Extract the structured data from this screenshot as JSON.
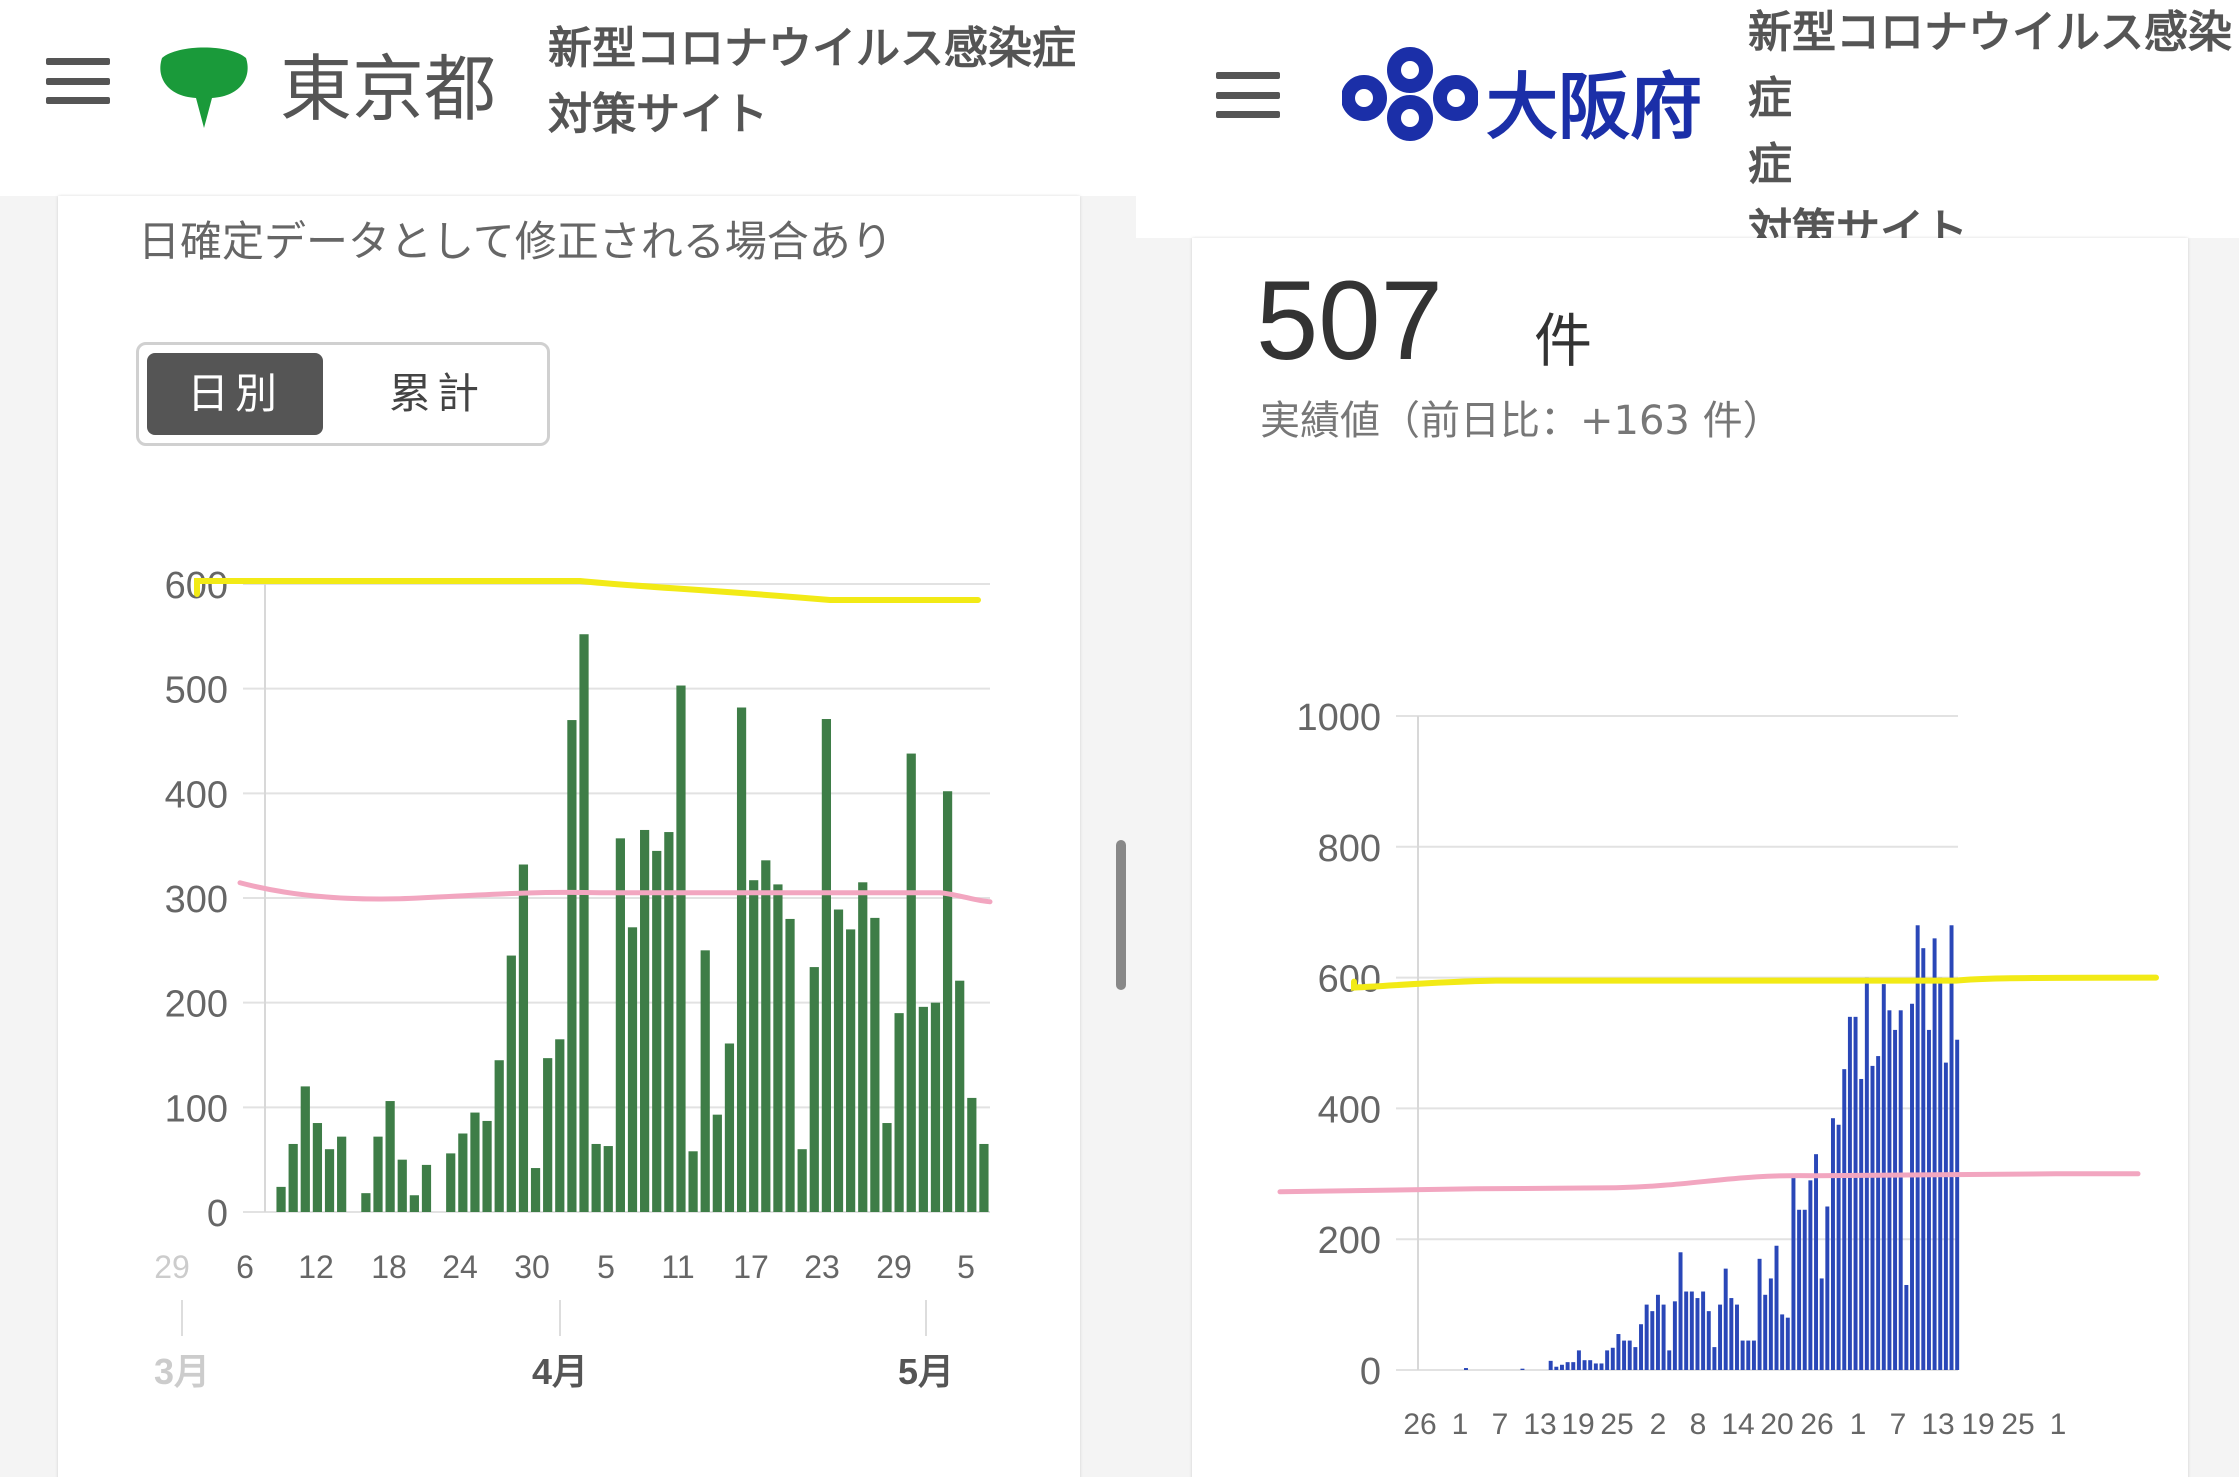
{
  "tokyo": {
    "logo_text": "東京都",
    "title": "新型コロナウイルス感染症\n対策サイト",
    "note": "日確定データとして修正される場合あり",
    "toggle": {
      "daily": "日別",
      "cumulative": "累計"
    },
    "colors": {
      "bar": "#3e7d47",
      "highlight_yellow": "#f2ea16",
      "highlight_pink": "#f2a6c0",
      "logo_green": "#1a9a3a"
    }
  },
  "osaka": {
    "logo_text": "大阪府",
    "title": "新型コロナウイルス感染症\n症\n対策サイト",
    "count_value": "507",
    "count_unit": "件",
    "count_sub": "実績値（前日比：+163 件）",
    "colors": {
      "bar": "#2a47b8",
      "logo_blue": "#1b2fa8"
    }
  },
  "chart_data": [
    {
      "type": "bar",
      "name": "tokyo",
      "ylim": [
        0,
        600
      ],
      "yticks": [
        0,
        100,
        200,
        300,
        400,
        500,
        600
      ],
      "x_tick_labels": [
        "29",
        "6",
        "12",
        "18",
        "24",
        "30",
        "5",
        "11",
        "17",
        "23",
        "29",
        "5"
      ],
      "month_labels": [
        "3月",
        "4月",
        "5月"
      ],
      "values": [
        24,
        65,
        120,
        85,
        60,
        72,
        0,
        18,
        72,
        106,
        50,
        16,
        45,
        0,
        56,
        75,
        95,
        87,
        145,
        245,
        332,
        42,
        147,
        165,
        470,
        552,
        65,
        63,
        357,
        272,
        365,
        345,
        363,
        503,
        58,
        250,
        93,
        161,
        482,
        317,
        336,
        313,
        280,
        60,
        234,
        471,
        289,
        270,
        315,
        281,
        85,
        190,
        438,
        196,
        200,
        402,
        221,
        109,
        65
      ],
      "annotations": {
        "yellow_line_near": 600,
        "pink_line_near": 305
      }
    },
    {
      "type": "bar",
      "name": "osaka",
      "ylim": [
        0,
        1000
      ],
      "yticks": [
        0,
        200,
        400,
        600,
        800,
        1000
      ],
      "x_tick_labels": [
        "26",
        "1",
        "7",
        "13",
        "19",
        "25",
        "2",
        "8",
        "14",
        "20",
        "26",
        "1",
        "7",
        "13",
        "19",
        "25",
        "1"
      ],
      "values": [
        0,
        0,
        0,
        0,
        0,
        0,
        0,
        0,
        3,
        0,
        0,
        0,
        0,
        0,
        0,
        0,
        0,
        0,
        2,
        0,
        0,
        0,
        0,
        14,
        5,
        8,
        12,
        12,
        30,
        15,
        15,
        10,
        10,
        30,
        34,
        55,
        45,
        45,
        35,
        70,
        100,
        90,
        115,
        100,
        30,
        105,
        180,
        120,
        120,
        110,
        120,
        90,
        35,
        100,
        155,
        110,
        100,
        45,
        45,
        45,
        170,
        115,
        140,
        190,
        85,
        80,
        295,
        245,
        245,
        290,
        330,
        140,
        250,
        385,
        375,
        460,
        540,
        540,
        445,
        600,
        465,
        480,
        590,
        550,
        520,
        550,
        130,
        560,
        680,
        645,
        520,
        660,
        600,
        470,
        680,
        505
      ],
      "annotations": {
        "yellow_line_near": 600,
        "pink_line_near": 300
      }
    }
  ]
}
